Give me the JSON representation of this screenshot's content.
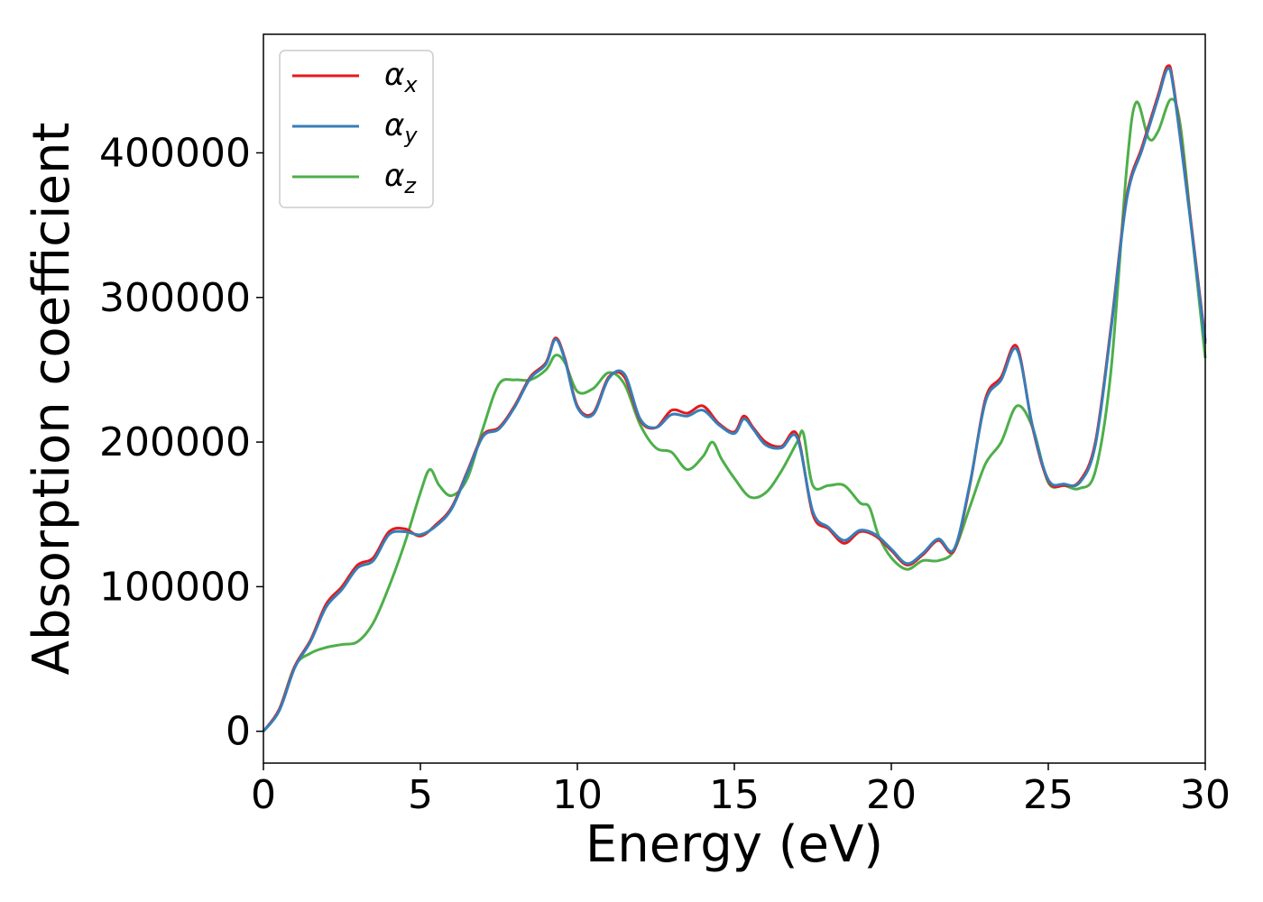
{
  "chart_data": {
    "type": "line",
    "title": "",
    "xlabel": "Energy (eV)",
    "ylabel": "Absorption coefficient",
    "xlim": [
      0,
      30
    ],
    "ylim": [
      -22000,
      482000
    ],
    "xticks": [
      0,
      5,
      10,
      15,
      20,
      25,
      30
    ],
    "yticks": [
      0,
      100000,
      200000,
      300000,
      400000
    ],
    "grid": false,
    "legend_position": "top-left",
    "series": [
      {
        "name": "α",
        "subscript": "x",
        "color": "#e41a1c",
        "x": [
          0,
          0.5,
          1.0,
          1.5,
          2.0,
          2.5,
          3.0,
          3.5,
          4.0,
          4.5,
          5.0,
          5.5,
          6.0,
          6.5,
          7.0,
          7.5,
          8.0,
          8.5,
          9.0,
          9.3,
          9.6,
          10.0,
          10.5,
          11.0,
          11.5,
          12.0,
          12.5,
          13.0,
          13.5,
          14.0,
          14.5,
          15.0,
          15.3,
          15.6,
          16.0,
          16.5,
          17.0,
          17.5,
          18.0,
          18.5,
          19.0,
          19.5,
          20.0,
          20.5,
          21.0,
          21.5,
          22.0,
          22.5,
          23.0,
          23.5,
          24.0,
          24.5,
          25.0,
          25.5,
          26.0,
          26.5,
          27.0,
          27.5,
          28.0,
          28.5,
          28.8,
          29.0,
          29.5,
          30.0
        ],
        "y": [
          0,
          15000,
          45000,
          63000,
          88000,
          100000,
          115000,
          120000,
          138000,
          140000,
          135000,
          143000,
          155000,
          180000,
          205000,
          210000,
          225000,
          245000,
          255000,
          272000,
          258000,
          225000,
          220000,
          245000,
          245000,
          215000,
          210000,
          222000,
          220000,
          225000,
          213000,
          207000,
          218000,
          210000,
          200000,
          197000,
          205000,
          150000,
          140000,
          130000,
          138000,
          135000,
          125000,
          115000,
          122000,
          132000,
          125000,
          170000,
          230000,
          245000,
          266000,
          210000,
          173000,
          170000,
          173000,
          200000,
          280000,
          370000,
          405000,
          440000,
          460000,
          445000,
          360000,
          270000
        ]
      },
      {
        "name": "α",
        "subscript": "y",
        "color": "#377eb8",
        "x": [
          0,
          0.5,
          1.0,
          1.5,
          2.0,
          2.5,
          3.0,
          3.5,
          4.0,
          4.5,
          5.0,
          5.5,
          6.0,
          6.5,
          7.0,
          7.5,
          8.0,
          8.5,
          9.0,
          9.3,
          9.6,
          10.0,
          10.5,
          11.0,
          11.5,
          12.0,
          12.5,
          13.0,
          13.5,
          14.0,
          14.5,
          15.0,
          15.3,
          15.6,
          16.0,
          16.5,
          17.0,
          17.5,
          18.0,
          18.5,
          19.0,
          19.5,
          20.0,
          20.5,
          21.0,
          21.5,
          22.0,
          22.5,
          23.0,
          23.5,
          24.0,
          24.5,
          25.0,
          25.5,
          26.0,
          26.5,
          27.0,
          27.5,
          28.0,
          28.5,
          28.8,
          29.0,
          29.5,
          30.0
        ],
        "y": [
          0,
          14000,
          44000,
          62000,
          86000,
          98000,
          113000,
          118000,
          136000,
          138000,
          136000,
          142000,
          154000,
          179000,
          204000,
          209000,
          224000,
          244000,
          254000,
          271000,
          257000,
          224000,
          219000,
          244000,
          247000,
          216000,
          210000,
          219000,
          218000,
          222000,
          212000,
          206000,
          216000,
          209000,
          198000,
          196000,
          203000,
          152000,
          141000,
          132000,
          139000,
          136000,
          126000,
          116000,
          123000,
          133000,
          126000,
          171000,
          228000,
          243000,
          264000,
          211000,
          174000,
          171000,
          172000,
          198000,
          278000,
          368000,
          403000,
          438000,
          458000,
          443000,
          358000,
          268000
        ]
      },
      {
        "name": "α",
        "subscript": "z",
        "color": "#4daf4a",
        "x": [
          0,
          0.5,
          1.0,
          1.5,
          2.0,
          2.5,
          3.0,
          3.5,
          4.0,
          4.5,
          5.0,
          5.3,
          5.6,
          6.0,
          6.5,
          7.0,
          7.5,
          8.0,
          8.5,
          9.0,
          9.3,
          9.6,
          10.0,
          10.5,
          11.0,
          11.5,
          12.0,
          12.5,
          13.0,
          13.5,
          14.0,
          14.3,
          14.6,
          15.0,
          15.5,
          16.0,
          16.5,
          17.0,
          17.2,
          17.5,
          18.0,
          18.5,
          19.0,
          19.3,
          19.6,
          20.0,
          20.5,
          21.0,
          21.5,
          22.0,
          22.5,
          23.0,
          23.5,
          24.0,
          24.5,
          25.0,
          25.5,
          26.0,
          26.5,
          27.0,
          27.5,
          27.8,
          28.2,
          28.5,
          28.9,
          29.2,
          29.6,
          30.0
        ],
        "y": [
          0,
          15000,
          45000,
          54000,
          58000,
          60000,
          62000,
          75000,
          100000,
          130000,
          165000,
          181000,
          170000,
          163000,
          175000,
          210000,
          240000,
          243000,
          243000,
          250000,
          260000,
          255000,
          235000,
          237000,
          248000,
          240000,
          212000,
          196000,
          193000,
          181000,
          190000,
          200000,
          188000,
          175000,
          162000,
          165000,
          180000,
          200000,
          206000,
          170000,
          170000,
          170000,
          158000,
          155000,
          135000,
          120000,
          112000,
          118000,
          118000,
          125000,
          155000,
          185000,
          200000,
          225000,
          210000,
          172000,
          170000,
          168000,
          180000,
          250000,
          390000,
          435000,
          410000,
          415000,
          437000,
          420000,
          340000,
          258000
        ]
      }
    ]
  }
}
